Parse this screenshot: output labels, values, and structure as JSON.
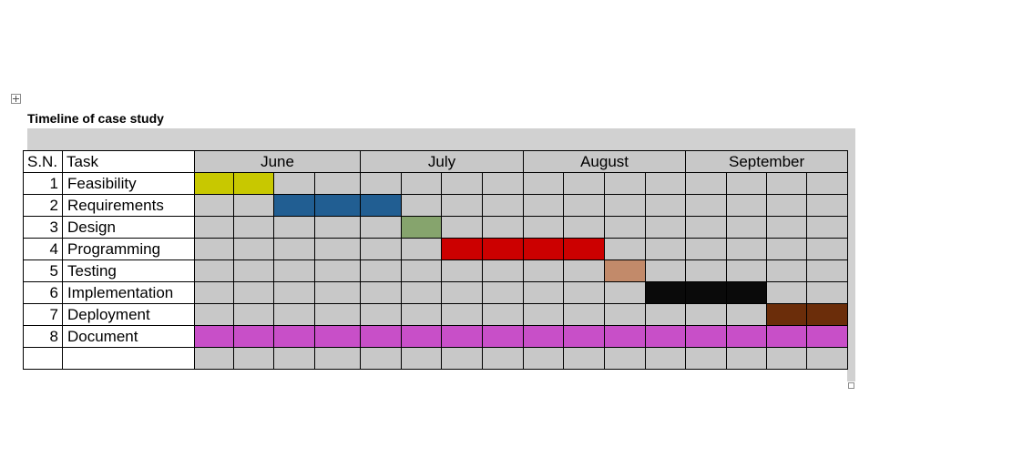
{
  "title": "Timeline of case study",
  "headers": {
    "sn": "S.N.",
    "task": "Task"
  },
  "months": [
    "June",
    "July",
    "August",
    "September"
  ],
  "weeks_per_month": [
    4,
    4,
    4,
    4
  ],
  "default_cell_color": "#c8c8c8",
  "tasks": [
    {
      "sn": "1",
      "name": "Feasibility",
      "start_week": 1,
      "end_week": 2,
      "color": "#c8c800"
    },
    {
      "sn": "2",
      "name": "Requirements",
      "start_week": 3,
      "end_week": 5,
      "color": "#215e92"
    },
    {
      "sn": "3",
      "name": "Design",
      "start_week": 6,
      "end_week": 6,
      "color": "#86a46d"
    },
    {
      "sn": "4",
      "name": "Programming",
      "start_week": 7,
      "end_week": 10,
      "color": "#cc0000"
    },
    {
      "sn": "5",
      "name": "Testing",
      "start_week": 11,
      "end_week": 11,
      "color": "#c28a6a"
    },
    {
      "sn": "6",
      "name": "Implementation",
      "start_week": 12,
      "end_week": 14,
      "color": "#0a0a0a"
    },
    {
      "sn": "7",
      "name": "Deployment",
      "start_week": 15,
      "end_week": 16,
      "color": "#6b2d0a"
    },
    {
      "sn": "8",
      "name": "Document",
      "start_week": 1,
      "end_week": 16,
      "color": "#c84fc8"
    },
    {
      "sn": "",
      "name": "",
      "start_week": 0,
      "end_week": 0,
      "color": ""
    }
  ]
}
